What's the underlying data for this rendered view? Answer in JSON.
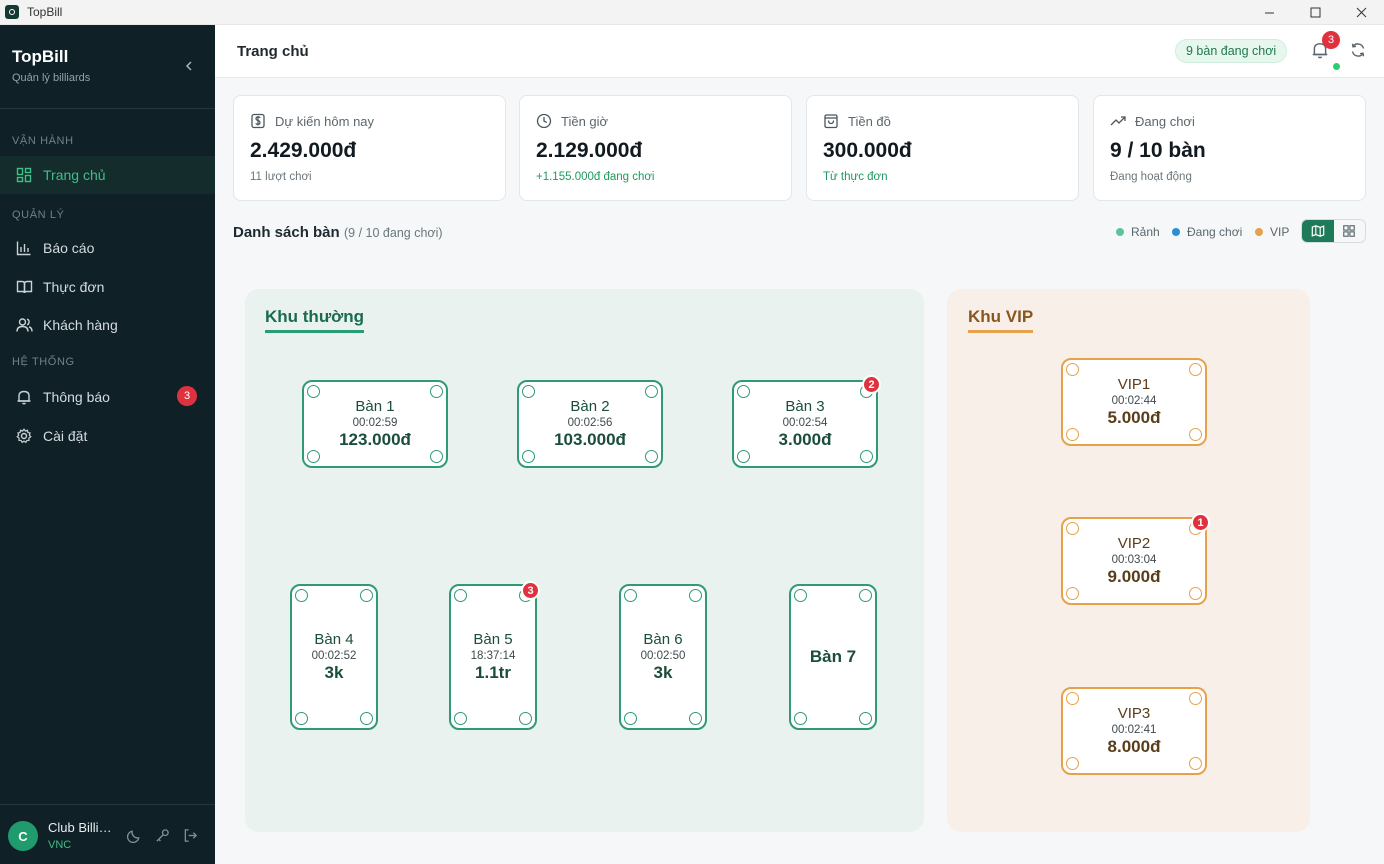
{
  "window": {
    "title": "TopBill"
  },
  "sidebar": {
    "brand": "TopBill",
    "subtitle": "Quản lý billiards",
    "sections": [
      "VẬN HÀNH",
      "QUẢN LÝ",
      "HỆ THỐNG"
    ],
    "items": [
      {
        "label": "Trang chủ",
        "icon": "grid-icon",
        "active": true
      },
      {
        "label": "Báo cáo",
        "icon": "bar-chart-icon"
      },
      {
        "label": "Thực đơn",
        "icon": "book-icon"
      },
      {
        "label": "Khách hàng",
        "icon": "users-icon"
      },
      {
        "label": "Thông báo",
        "icon": "bell-icon",
        "badge": "3"
      },
      {
        "label": "Cài đặt",
        "icon": "gear-icon"
      }
    ],
    "footer": {
      "avatar": "C",
      "name": "Club Billiards",
      "sub": "VNC"
    }
  },
  "header": {
    "title": "Trang chủ",
    "status": "9 bàn đang chơi",
    "notif_count": "3"
  },
  "stats": [
    {
      "label": "Dự kiến hôm nay",
      "value": "2.429.000đ",
      "note": "11 lượt chơi",
      "icon": "dollar-icon"
    },
    {
      "label": "Tiền giờ",
      "value": "2.129.000đ",
      "note": "+1.155.000đ đang chơi",
      "icon": "clock-icon"
    },
    {
      "label": "Tiền đồ",
      "value": "300.000đ",
      "note": "Từ thực đơn",
      "icon": "bag-icon"
    },
    {
      "label": "Đang chơi",
      "value": "9 / 10 bàn",
      "note": "Đang hoạt động",
      "icon": "trend-icon"
    }
  ],
  "list": {
    "title": "Danh sách bàn",
    "count": "(9 / 10 đang chơi)",
    "legend": [
      {
        "label": "Rảnh",
        "color": "#5cc49a"
      },
      {
        "label": "Đang chơi",
        "color": "#2b8fd6"
      },
      {
        "label": "VIP",
        "color": "#e8a14b"
      }
    ]
  },
  "zones": {
    "normal": {
      "title": "Khu thường",
      "tables": [
        {
          "name": "Bàn 1",
          "time": "00:02:59",
          "amount": "123.000đ"
        },
        {
          "name": "Bàn 2",
          "time": "00:02:56",
          "amount": "103.000đ"
        },
        {
          "name": "Bàn 3",
          "time": "00:02:54",
          "amount": "3.000đ",
          "badge": "2"
        },
        {
          "name": "Bàn 4",
          "time": "00:02:52",
          "amount": "3k"
        },
        {
          "name": "Bàn 5",
          "time": "18:37:14",
          "amount": "1.1tr",
          "badge": "3"
        },
        {
          "name": "Bàn 6",
          "time": "00:02:50",
          "amount": "3k"
        },
        {
          "name": "Bàn 7"
        }
      ]
    },
    "vip": {
      "title": "Khu VIP",
      "tables": [
        {
          "name": "VIP1",
          "time": "00:02:44",
          "amount": "5.000đ"
        },
        {
          "name": "VIP2",
          "time": "00:03:04",
          "amount": "9.000đ",
          "badge": "1"
        },
        {
          "name": "VIP3",
          "time": "00:02:41",
          "amount": "8.000đ"
        }
      ]
    }
  }
}
